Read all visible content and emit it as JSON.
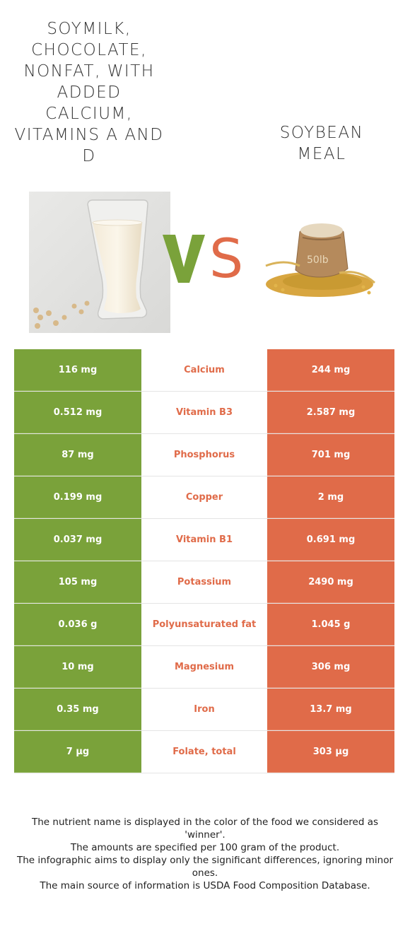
{
  "header": {
    "left_food": "Soymilk, chocolate, nonfat, with added calcium, vitamins A and D",
    "right_food": "Soybean meal",
    "vs_label": "VS"
  },
  "colors": {
    "left_food": "#7aa23a",
    "right_food": "#e06b49"
  },
  "rows": [
    {
      "nutrient": "Calcium",
      "left": "116 mg",
      "right": "244 mg"
    },
    {
      "nutrient": "Vitamin B3",
      "left": "0.512 mg",
      "right": "2.587 mg"
    },
    {
      "nutrient": "Phosphorus",
      "left": "87 mg",
      "right": "701 mg"
    },
    {
      "nutrient": "Copper",
      "left": "0.199 mg",
      "right": "2 mg"
    },
    {
      "nutrient": "Vitamin B1",
      "left": "0.037 mg",
      "right": "0.691 mg"
    },
    {
      "nutrient": "Potassium",
      "left": "105 mg",
      "right": "2490 mg"
    },
    {
      "nutrient": "Polyunsaturated fat",
      "left": "0.036 g",
      "right": "1.045 g"
    },
    {
      "nutrient": "Magnesium",
      "left": "10 mg",
      "right": "306 mg"
    },
    {
      "nutrient": "Iron",
      "left": "0.35 mg",
      "right": "13.7 mg"
    },
    {
      "nutrient": "Folate, total",
      "left": "7 µg",
      "right": "303 µg"
    }
  ],
  "sack_label": "50lb",
  "footer": {
    "line1": "The nutrient name is displayed in the color of the food we considered as 'winner'.",
    "line2": "The amounts are specified per 100 gram of the product.",
    "line3": "The infographic aims to display only the significant differences, ignoring minor ones.",
    "line4": "The main source of information is USDA Food Composition Database."
  }
}
